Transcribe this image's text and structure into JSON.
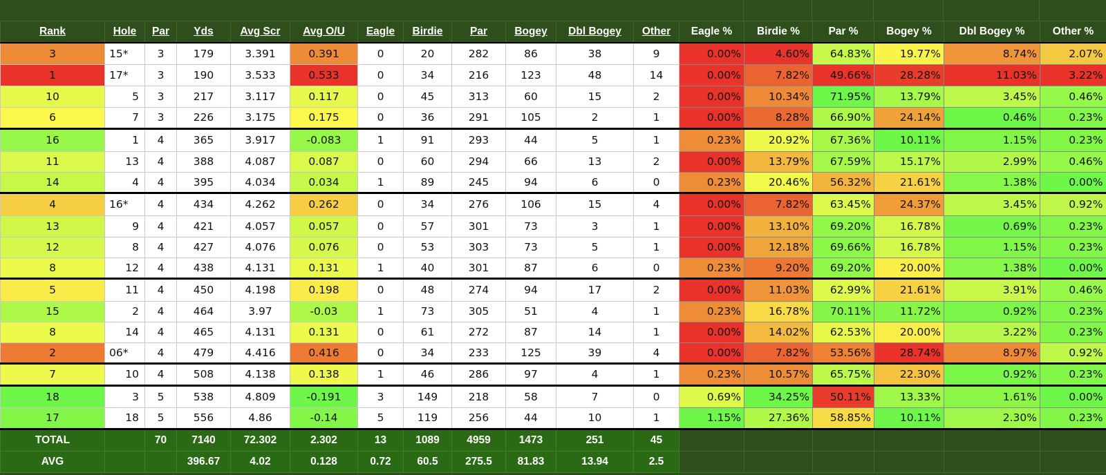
{
  "headers": {
    "rank": "Rank",
    "hole": "Hole",
    "par": "Par",
    "yds": "Yds",
    "avg_scr": "Avg Scr",
    "avg_ou": "Avg O/U",
    "eagle": "Eagle",
    "birdie": "Birdie",
    "par2": "Par",
    "bogey": "Bogey",
    "dbl_bogey": "Dbl Bogey",
    "other": "Other",
    "eagle_pct": "Eagle %",
    "birdie_pct": "Birdie %",
    "par_pct": "Par %",
    "bogey_pct": "Bogey %",
    "dbl_bogey_pct": "Dbl Bogey %",
    "other_pct": "Other %"
  },
  "rows": [
    {
      "rank": "3",
      "hole": "15*",
      "par": "3",
      "yds": "179",
      "avg_scr": "3.391",
      "avg_ou": "0.391",
      "eagle": "0",
      "birdie": "20",
      "pars": "282",
      "bogey": "86",
      "dbl": "38",
      "other": "9",
      "eagle_pct": "0.00%",
      "birdie_pct": "4.60%",
      "par_pct": "64.83%",
      "bogey_pct": "19.77%",
      "dbl_pct": "8.74%",
      "other_pct": "2.07%"
    },
    {
      "rank": "1",
      "hole": "17*",
      "par": "3",
      "yds": "190",
      "avg_scr": "3.533",
      "avg_ou": "0.533",
      "eagle": "0",
      "birdie": "34",
      "pars": "216",
      "bogey": "123",
      "dbl": "48",
      "other": "14",
      "eagle_pct": "0.00%",
      "birdie_pct": "7.82%",
      "par_pct": "49.66%",
      "bogey_pct": "28.28%",
      "dbl_pct": "11.03%",
      "other_pct": "3.22%"
    },
    {
      "rank": "10",
      "hole": "5",
      "par": "3",
      "yds": "217",
      "avg_scr": "3.117",
      "avg_ou": "0.117",
      "eagle": "0",
      "birdie": "45",
      "pars": "313",
      "bogey": "60",
      "dbl": "15",
      "other": "2",
      "eagle_pct": "0.00%",
      "birdie_pct": "10.34%",
      "par_pct": "71.95%",
      "bogey_pct": "13.79%",
      "dbl_pct": "3.45%",
      "other_pct": "0.46%"
    },
    {
      "rank": "6",
      "hole": "7",
      "par": "3",
      "yds": "226",
      "avg_scr": "3.175",
      "avg_ou": "0.175",
      "eagle": "0",
      "birdie": "36",
      "pars": "291",
      "bogey": "105",
      "dbl": "2",
      "other": "1",
      "eagle_pct": "0.00%",
      "birdie_pct": "8.28%",
      "par_pct": "66.90%",
      "bogey_pct": "24.14%",
      "dbl_pct": "0.46%",
      "other_pct": "0.23%"
    },
    {
      "rank": "16",
      "hole": "1",
      "par": "4",
      "yds": "365",
      "avg_scr": "3.917",
      "avg_ou": "-0.083",
      "eagle": "1",
      "birdie": "91",
      "pars": "293",
      "bogey": "44",
      "dbl": "5",
      "other": "1",
      "eagle_pct": "0.23%",
      "birdie_pct": "20.92%",
      "par_pct": "67.36%",
      "bogey_pct": "10.11%",
      "dbl_pct": "1.15%",
      "other_pct": "0.23%"
    },
    {
      "rank": "11",
      "hole": "13",
      "par": "4",
      "yds": "388",
      "avg_scr": "4.087",
      "avg_ou": "0.087",
      "eagle": "0",
      "birdie": "60",
      "pars": "294",
      "bogey": "66",
      "dbl": "13",
      "other": "2",
      "eagle_pct": "0.00%",
      "birdie_pct": "13.79%",
      "par_pct": "67.59%",
      "bogey_pct": "15.17%",
      "dbl_pct": "2.99%",
      "other_pct": "0.46%"
    },
    {
      "rank": "14",
      "hole": "4",
      "par": "4",
      "yds": "395",
      "avg_scr": "4.034",
      "avg_ou": "0.034",
      "eagle": "1",
      "birdie": "89",
      "pars": "245",
      "bogey": "94",
      "dbl": "6",
      "other": "0",
      "eagle_pct": "0.23%",
      "birdie_pct": "20.46%",
      "par_pct": "56.32%",
      "bogey_pct": "21.61%",
      "dbl_pct": "1.38%",
      "other_pct": "0.00%"
    },
    {
      "rank": "4",
      "hole": "16*",
      "par": "4",
      "yds": "434",
      "avg_scr": "4.262",
      "avg_ou": "0.262",
      "eagle": "0",
      "birdie": "34",
      "pars": "276",
      "bogey": "106",
      "dbl": "15",
      "other": "4",
      "eagle_pct": "0.00%",
      "birdie_pct": "7.82%",
      "par_pct": "63.45%",
      "bogey_pct": "24.37%",
      "dbl_pct": "3.45%",
      "other_pct": "0.92%"
    },
    {
      "rank": "13",
      "hole": "9",
      "par": "4",
      "yds": "421",
      "avg_scr": "4.057",
      "avg_ou": "0.057",
      "eagle": "0",
      "birdie": "57",
      "pars": "301",
      "bogey": "73",
      "dbl": "3",
      "other": "1",
      "eagle_pct": "0.00%",
      "birdie_pct": "13.10%",
      "par_pct": "69.20%",
      "bogey_pct": "16.78%",
      "dbl_pct": "0.69%",
      "other_pct": "0.23%"
    },
    {
      "rank": "12",
      "hole": "8",
      "par": "4",
      "yds": "427",
      "avg_scr": "4.076",
      "avg_ou": "0.076",
      "eagle": "0",
      "birdie": "53",
      "pars": "303",
      "bogey": "73",
      "dbl": "5",
      "other": "1",
      "eagle_pct": "0.00%",
      "birdie_pct": "12.18%",
      "par_pct": "69.66%",
      "bogey_pct": "16.78%",
      "dbl_pct": "1.15%",
      "other_pct": "0.23%"
    },
    {
      "rank": "8",
      "hole": "12",
      "par": "4",
      "yds": "438",
      "avg_scr": "4.131",
      "avg_ou": "0.131",
      "eagle": "1",
      "birdie": "40",
      "pars": "301",
      "bogey": "87",
      "dbl": "6",
      "other": "0",
      "eagle_pct": "0.23%",
      "birdie_pct": "9.20%",
      "par_pct": "69.20%",
      "bogey_pct": "20.00%",
      "dbl_pct": "1.38%",
      "other_pct": "0.00%"
    },
    {
      "rank": "5",
      "hole": "11",
      "par": "4",
      "yds": "450",
      "avg_scr": "4.198",
      "avg_ou": "0.198",
      "eagle": "0",
      "birdie": "48",
      "pars": "274",
      "bogey": "94",
      "dbl": "17",
      "other": "2",
      "eagle_pct": "0.00%",
      "birdie_pct": "11.03%",
      "par_pct": "62.99%",
      "bogey_pct": "21.61%",
      "dbl_pct": "3.91%",
      "other_pct": "0.46%"
    },
    {
      "rank": "15",
      "hole": "2",
      "par": "4",
      "yds": "464",
      "avg_scr": "3.97",
      "avg_ou": "-0.03",
      "eagle": "1",
      "birdie": "73",
      "pars": "305",
      "bogey": "51",
      "dbl": "4",
      "other": "1",
      "eagle_pct": "0.23%",
      "birdie_pct": "16.78%",
      "par_pct": "70.11%",
      "bogey_pct": "11.72%",
      "dbl_pct": "0.92%",
      "other_pct": "0.23%"
    },
    {
      "rank": "8",
      "hole": "14",
      "par": "4",
      "yds": "465",
      "avg_scr": "4.131",
      "avg_ou": "0.131",
      "eagle": "0",
      "birdie": "61",
      "pars": "272",
      "bogey": "87",
      "dbl": "14",
      "other": "1",
      "eagle_pct": "0.00%",
      "birdie_pct": "14.02%",
      "par_pct": "62.53%",
      "bogey_pct": "20.00%",
      "dbl_pct": "3.22%",
      "other_pct": "0.23%"
    },
    {
      "rank": "2",
      "hole": "06*",
      "par": "4",
      "yds": "479",
      "avg_scr": "4.416",
      "avg_ou": "0.416",
      "eagle": "0",
      "birdie": "34",
      "pars": "233",
      "bogey": "125",
      "dbl": "39",
      "other": "4",
      "eagle_pct": "0.00%",
      "birdie_pct": "7.82%",
      "par_pct": "53.56%",
      "bogey_pct": "28.74%",
      "dbl_pct": "8.97%",
      "other_pct": "0.92%"
    },
    {
      "rank": "7",
      "hole": "10",
      "par": "4",
      "yds": "508",
      "avg_scr": "4.138",
      "avg_ou": "0.138",
      "eagle": "1",
      "birdie": "46",
      "pars": "286",
      "bogey": "97",
      "dbl": "4",
      "other": "1",
      "eagle_pct": "0.23%",
      "birdie_pct": "10.57%",
      "par_pct": "65.75%",
      "bogey_pct": "22.30%",
      "dbl_pct": "0.92%",
      "other_pct": "0.23%"
    },
    {
      "rank": "18",
      "hole": "3",
      "par": "5",
      "yds": "538",
      "avg_scr": "4.809",
      "avg_ou": "-0.191",
      "eagle": "3",
      "birdie": "149",
      "pars": "218",
      "bogey": "58",
      "dbl": "7",
      "other": "0",
      "eagle_pct": "0.69%",
      "birdie_pct": "34.25%",
      "par_pct": "50.11%",
      "bogey_pct": "13.33%",
      "dbl_pct": "1.61%",
      "other_pct": "0.00%"
    },
    {
      "rank": "17",
      "hole": "18",
      "par": "5",
      "yds": "556",
      "avg_scr": "4.86",
      "avg_ou": "-0.14",
      "eagle": "5",
      "birdie": "119",
      "pars": "256",
      "bogey": "44",
      "dbl": "10",
      "other": "1",
      "eagle_pct": "1.15%",
      "birdie_pct": "27.36%",
      "par_pct": "58.85%",
      "bogey_pct": "10.11%",
      "dbl_pct": "2.30%",
      "other_pct": "0.23%"
    }
  ],
  "totals": {
    "total": {
      "label": "TOTAL",
      "hole": "",
      "par": "70",
      "yds": "7140",
      "avg_scr": "72.302",
      "avg_ou": "2.302",
      "eagle": "13",
      "birdie": "1089",
      "pars": "4959",
      "bogey": "1473",
      "dbl": "251",
      "other": "45"
    },
    "avg": {
      "label": "AVG",
      "hole": "",
      "par": "",
      "yds": "396.67",
      "avg_scr": "4.02",
      "avg_ou": "0.128",
      "eagle": "0.72",
      "birdie": "60.5",
      "pars": "275.5",
      "bogey": "81.83",
      "dbl": "13.94",
      "other": "2.5"
    }
  },
  "colors": {
    "header_bg": "#2e4f1c",
    "footer_bg": "#2a6a15",
    "heat_red": "#e8322a",
    "heat_orange": "#f0a33a",
    "heat_yellow": "#fbf94b",
    "heat_green": "#6ef748",
    "group_border": "#000000"
  }
}
